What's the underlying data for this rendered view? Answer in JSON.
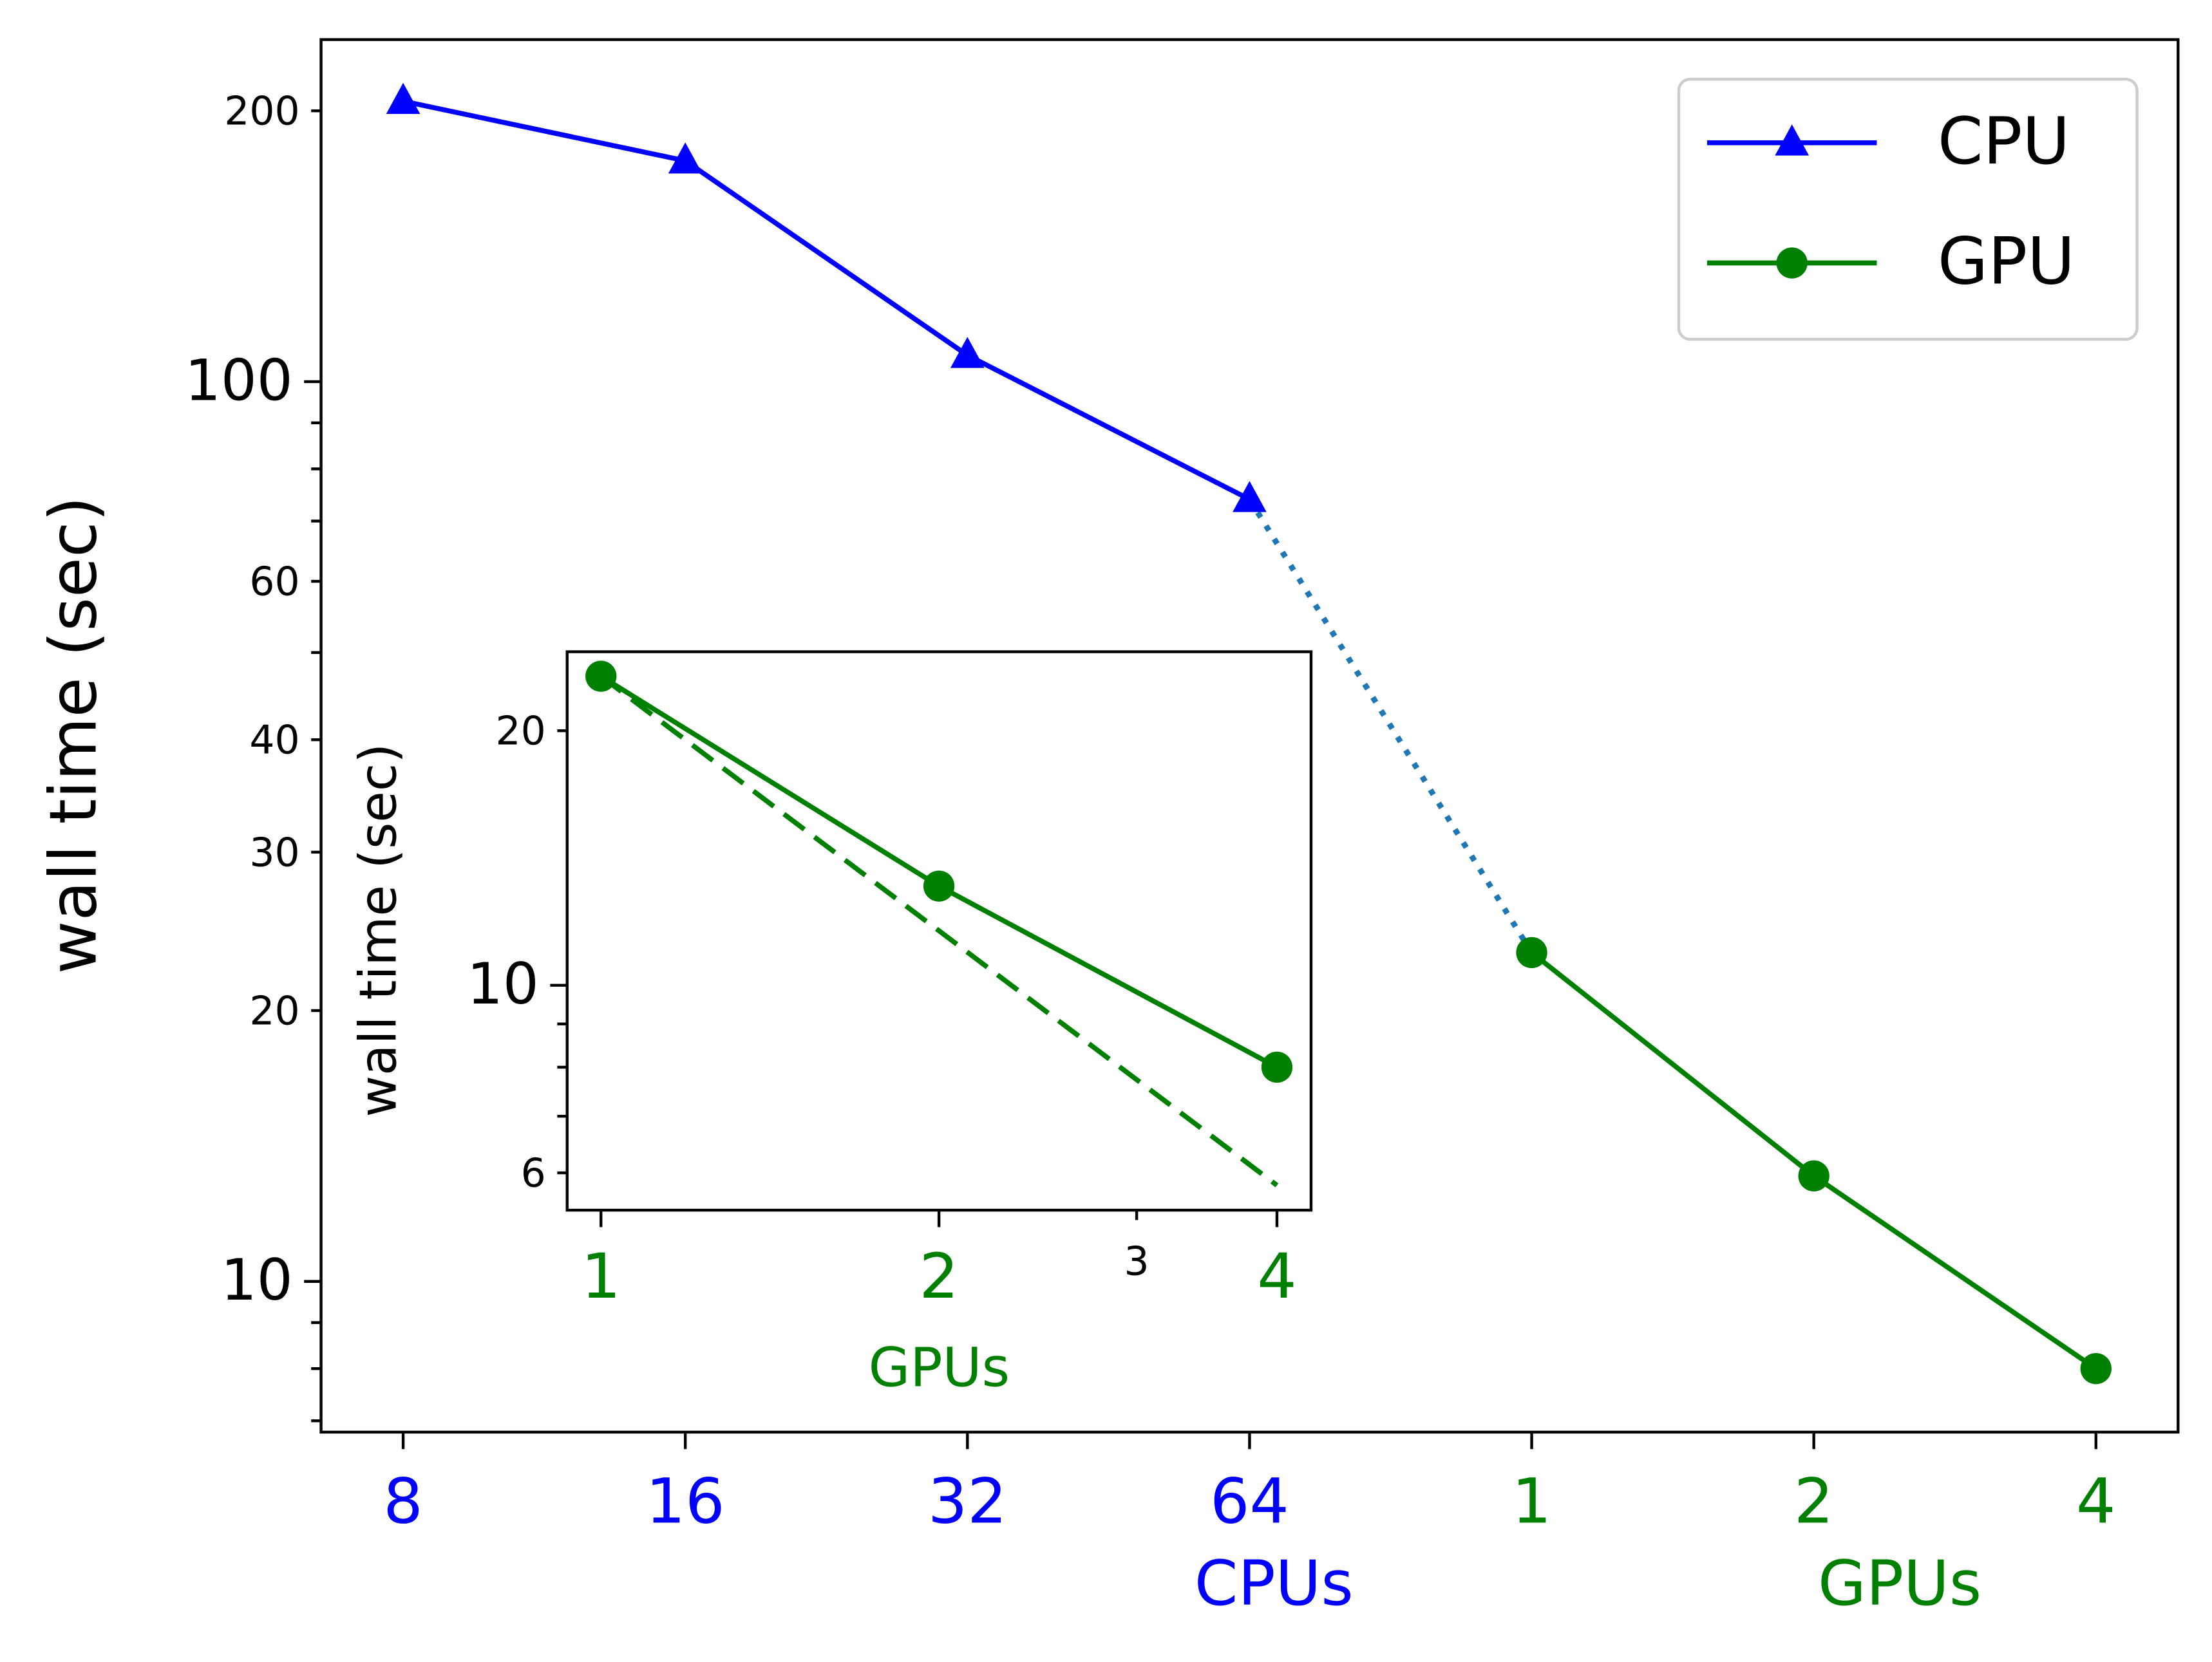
{
  "chart_data": [
    {
      "type": "line",
      "ylabel": "wall time (sec)",
      "categories": [
        "8",
        "16",
        "32",
        "64",
        "1",
        "2",
        "4"
      ],
      "category_colors": [
        "#0000ff",
        "#0000ff",
        "#0000ff",
        "#0000ff",
        "#008000",
        "#008000",
        "#008000"
      ],
      "xlabels": [
        {
          "text": "CPUs",
          "color": "#0000ff"
        },
        {
          "text": "GPUs",
          "color": "#008000"
        }
      ],
      "series": [
        {
          "name": "CPU",
          "color": "#0000ff",
          "marker": "triangle",
          "values": [
            205,
            176,
            107,
            74,
            null,
            null,
            null
          ]
        },
        {
          "name": "GPU",
          "color": "#008000",
          "marker": "circle",
          "values": [
            null,
            null,
            null,
            null,
            23.2,
            13.1,
            8.0
          ]
        }
      ],
      "connector": {
        "color": "#1f77b4",
        "style": "dotted"
      },
      "log_y": true,
      "ylim": [
        6.8,
        240
      ],
      "yticks": [
        10,
        100
      ],
      "yticks_minor": [
        20,
        30,
        40,
        60,
        200
      ],
      "yticks_minor_unlabeled": [
        7,
        8,
        9,
        50,
        70,
        80,
        90
      ],
      "legend": "upper right"
    },
    {
      "type": "line",
      "ylabel": "wall time (sec)",
      "xlabel": "GPUs",
      "xlabel_color": "#008000",
      "x": [
        1,
        2,
        4
      ],
      "series": [
        {
          "color": "#008000",
          "marker": "circle",
          "style": "solid",
          "values": [
            23.2,
            13.1,
            8.0
          ]
        },
        {
          "color": "#008000",
          "style": "dashed",
          "values": [
            23.2,
            11.6,
            5.8
          ]
        }
      ],
      "log_x": true,
      "log_y": true,
      "xlim": [
        0.933,
        4.29
      ],
      "xticks": [
        1,
        2,
        4
      ],
      "xtick_color": "#008000",
      "xticks_minor": [
        3
      ],
      "ylim": [
        5.42,
        24.8
      ],
      "yticks": [
        10
      ],
      "yticks_minor": [
        6,
        20
      ],
      "yticks_minor_unlabeled": [
        7,
        8,
        9
      ]
    }
  ]
}
